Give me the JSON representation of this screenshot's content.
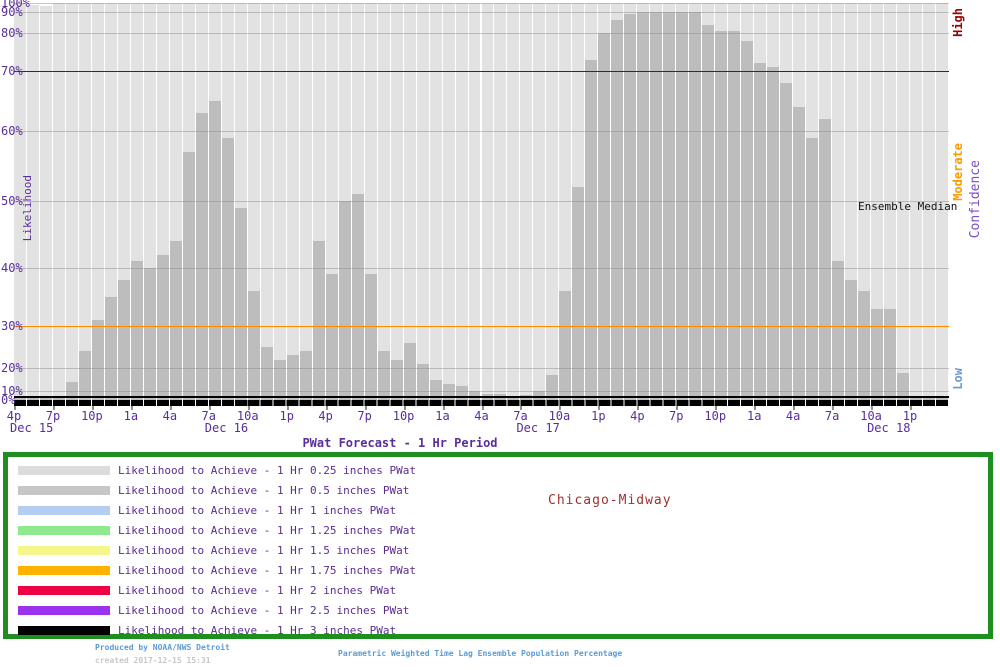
{
  "chart_data": {
    "type": "bar",
    "title": "PWat Forecast -  1 Hr Period",
    "station": "Chicago-Midway",
    "ylabel": "Likelihood",
    "right_axis_label": "Confidence",
    "ensemble_median_label": "Ensemble Median",
    "ylim": [
      0,
      100
    ],
    "y_scale": "probit-like (gaussian spacing)",
    "grid": "horizontal gray every 10%, vertical white hourly bar separators",
    "x_start": "4p Dec 15",
    "x_interval_hours": 1,
    "x_hours": [
      "4p",
      "5p",
      "6p",
      "7p",
      "8p",
      "9p",
      "10p",
      "11p",
      "12a",
      "1a",
      "2a",
      "3a",
      "4a",
      "5a",
      "6a",
      "7a",
      "8a",
      "9a",
      "10a",
      "11a",
      "12p",
      "1p",
      "2p",
      "3p",
      "4p",
      "5p",
      "6p",
      "7p",
      "8p",
      "9p",
      "10p",
      "11p",
      "12a",
      "1a",
      "2a",
      "3a",
      "4a",
      "5a",
      "6a",
      "7a",
      "8a",
      "9a",
      "10a",
      "11a",
      "12p",
      "1p",
      "2p",
      "3p",
      "4p",
      "5p",
      "6p",
      "7p",
      "8p",
      "9p",
      "10p",
      "11p",
      "12a",
      "1a",
      "2a",
      "3a",
      "4a",
      "5a",
      "6a",
      "7a",
      "8a",
      "9a",
      "10a",
      "11a",
      "12p",
      "1p",
      "2p",
      "3p"
    ],
    "x_tick_labels": [
      "4p",
      "7p",
      "10p",
      "1a",
      "4a",
      "7a",
      "10a",
      "1p",
      "4p",
      "7p",
      "10p",
      "1a",
      "4a",
      "7a",
      "10a",
      "1p",
      "4p",
      "7p",
      "10p",
      "1a",
      "4a",
      "7a",
      "10a",
      "1p"
    ],
    "x_date_labels": [
      {
        "text": "Dec 15",
        "tick": 0
      },
      {
        "text": "Dec 16",
        "tick": 5
      },
      {
        "text": "Dec 17",
        "tick": 13
      },
      {
        "text": "Dec 18",
        "tick": 22
      }
    ],
    "y_tick_labels": [
      "0%",
      "10%",
      "20%",
      "30%",
      "40%",
      "50%",
      "60%",
      "70%",
      "80%",
      "90%",
      "100%"
    ],
    "scale_anchors": [
      [
        0,
        400
      ],
      [
        10,
        391
      ],
      [
        20,
        368
      ],
      [
        30,
        326
      ],
      [
        40,
        268
      ],
      [
        50,
        201
      ],
      [
        60,
        131
      ],
      [
        70,
        71
      ],
      [
        80,
        33
      ],
      [
        90,
        12
      ],
      [
        100,
        3
      ]
    ],
    "series": [
      {
        "name": "Likelihood to Achieve -  1 Hr 0.25 inches PWat",
        "color": "#e2e2e2",
        "values": [
          100,
          98,
          97,
          100,
          100,
          100,
          100,
          100,
          100,
          100,
          100,
          100,
          100,
          100,
          100,
          100,
          100,
          100,
          100,
          100,
          100,
          100,
          100,
          100,
          100,
          100,
          100,
          100,
          100,
          100,
          100,
          100,
          100,
          100,
          100,
          100,
          100,
          100,
          100,
          100,
          100,
          100,
          100,
          100,
          100,
          100,
          100,
          100,
          100,
          100,
          100,
          100,
          100,
          100,
          100,
          100,
          100,
          100,
          100,
          100,
          100,
          100,
          100,
          100,
          100,
          100,
          100,
          100,
          100,
          100,
          100,
          100
        ]
      },
      {
        "name": "Likelihood to Achieve -  1 Hr 0.5 inches PWat",
        "color": "#bdbdbd",
        "values": [
          2,
          2,
          3,
          5,
          14,
          24,
          31,
          35,
          38,
          41,
          40,
          42,
          44,
          57,
          63,
          65,
          59,
          49,
          36,
          25,
          22,
          23,
          24,
          44,
          39,
          50,
          51,
          39,
          24,
          22,
          26,
          21,
          15,
          13,
          12,
          10,
          7,
          7,
          4,
          6,
          10,
          17,
          36,
          52,
          73,
          80,
          86,
          89,
          90,
          90,
          90,
          90,
          90,
          84,
          81,
          81,
          78,
          72,
          71,
          68,
          64,
          59,
          62,
          41,
          38,
          36,
          33,
          33,
          18,
          2,
          2,
          2
        ]
      }
    ],
    "threshold_lines": [
      {
        "value": 70,
        "color": "#990000",
        "meaning": "High confidence boundary"
      },
      {
        "value": 30,
        "color": "#ff8c00",
        "meaning": "Moderate/Low confidence boundary"
      }
    ],
    "confidence_bands": [
      {
        "text": "High",
        "color": "#990000"
      },
      {
        "text": "Moderate",
        "color": "#ff9900"
      },
      {
        "text": "Low",
        "color": "#6699dd"
      }
    ],
    "legend_position": "bottom box with green border"
  },
  "legend": {
    "station": "Chicago-Midway",
    "entries": [
      {
        "label": "Likelihood to Achieve -  1 Hr 0.25 inches PWat",
        "color": "#dcdcdc"
      },
      {
        "label": "Likelihood to Achieve -  1 Hr 0.5 inches PWat",
        "color": "#c6c6c6"
      },
      {
        "label": "Likelihood to Achieve -  1 Hr 1 inches PWat",
        "color": "#b5cdf2"
      },
      {
        "label": "Likelihood to Achieve -  1 Hr 1.25 inches PWat",
        "color": "#8ee98e"
      },
      {
        "label": "Likelihood to Achieve -  1 Hr 1.5 inches PWat",
        "color": "#f5f58a"
      },
      {
        "label": "Likelihood to Achieve -  1 Hr 1.75 inches PWat",
        "color": "#ffb300"
      },
      {
        "label": "Likelihood to Achieve -  1 Hr 2 inches PWat",
        "color": "#ee0044"
      },
      {
        "label": "Likelihood to Achieve -  1 Hr 2.5 inches PWat",
        "color": "#9933ee"
      },
      {
        "label": "Likelihood to Achieve -  1 Hr 3 inches PWat",
        "color": "#000000"
      }
    ]
  },
  "labels": {
    "ylabel": "Likelihood",
    "xtitle": "PWat Forecast -  1 Hr Period",
    "ensemble_median": "Ensemble Median",
    "confidence": "Confidence"
  },
  "footer": {
    "produced": "Produced by NOAA/NWS Detroit",
    "created": "created 2017-12-15 15:31",
    "center": "Parametric Weighted Time Lag Ensemble Population Percentage"
  }
}
